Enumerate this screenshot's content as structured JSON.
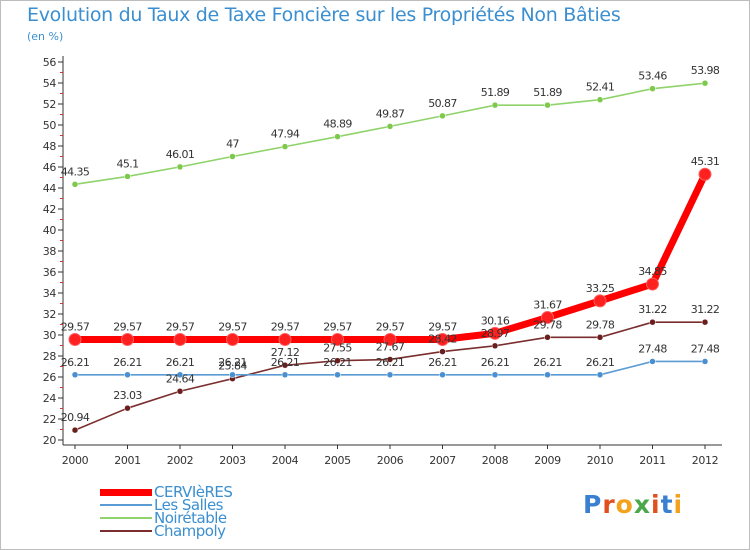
{
  "title": "Evolution du Taux de Taxe Foncière sur les Propriétés Non Bâties",
  "subtitle": "(en %)",
  "logo": {
    "text": "Proxiti",
    "letter_colors": [
      "#3a7fd0",
      "#e0501e",
      "#f2a21b",
      "#4aa84a",
      "#e0501e",
      "#3a7fd0",
      "#f2a21b"
    ]
  },
  "chart_data": {
    "type": "line",
    "x": [
      "2000",
      "2001",
      "2002",
      "2003",
      "2004",
      "2005",
      "2006",
      "2007",
      "2008",
      "2009",
      "2010",
      "2011",
      "2012"
    ],
    "yticks": [
      "20",
      "22",
      "24",
      "26",
      "28",
      "30",
      "32",
      "34",
      "36",
      "38",
      "40",
      "42",
      "44",
      "46",
      "48",
      "50",
      "52",
      "54",
      "56"
    ],
    "ylim": [
      20,
      56
    ],
    "grid": false,
    "legend_position": "bottom-left",
    "series": [
      {
        "name": "CERVIèRES",
        "color": "#ff0000",
        "marker_color": "#ff2020",
        "width": 7,
        "marker_r": 6,
        "values": [
          29.57,
          29.57,
          29.57,
          29.57,
          29.57,
          29.57,
          29.57,
          29.57,
          30.16,
          31.67,
          33.25,
          34.85,
          45.31
        ],
        "labels": [
          "29.57",
          "29.57",
          "29.57",
          "29.57",
          "29.57",
          "29.57",
          "29.57",
          "29.57",
          "30.16",
          "31.67",
          "33.25",
          "34.85",
          "45.31"
        ]
      },
      {
        "name": "Les Salles",
        "color": "#5a9bd3",
        "marker_color": "#4a8fcf",
        "width": 1.6,
        "marker_r": 3,
        "values": [
          26.21,
          26.21,
          26.21,
          26.21,
          26.21,
          26.21,
          26.21,
          26.21,
          26.21,
          26.21,
          26.21,
          27.48,
          27.48
        ],
        "labels": [
          "26.21",
          "26.21",
          "26.21",
          "26.21",
          "26.21",
          "26.21",
          "26.21",
          "26.21",
          "26.21",
          "26.21",
          "26.21",
          "27.48",
          "27.48"
        ]
      },
      {
        "name": "Noirétable",
        "color": "#8fd36a",
        "marker_color": "#7cc94c",
        "width": 1.6,
        "marker_r": 3,
        "values": [
          44.35,
          45.1,
          46.01,
          47,
          47.94,
          48.89,
          49.87,
          50.87,
          51.89,
          51.89,
          52.41,
          53.46,
          53.98
        ],
        "labels": [
          "44.35",
          "45.1",
          "46.01",
          "47",
          "47.94",
          "48.89",
          "49.87",
          "50.87",
          "51.89",
          "51.89",
          "52.41",
          "53.46",
          "53.98"
        ]
      },
      {
        "name": "Champoly",
        "color": "#7a2e2e",
        "marker_color": "#6a1e1e",
        "width": 1.6,
        "marker_r": 3,
        "values": [
          20.94,
          23.03,
          24.64,
          25.84,
          27.12,
          27.55,
          27.67,
          28.42,
          28.97,
          29.78,
          29.78,
          31.22,
          31.22
        ],
        "labels": [
          "20.94",
          "23.03",
          "24.64",
          "25.84",
          "27.12",
          "27.55",
          "27.67",
          "28.42",
          "28.97",
          "29.78",
          "29.78",
          "31.22",
          "31.22"
        ]
      }
    ]
  }
}
